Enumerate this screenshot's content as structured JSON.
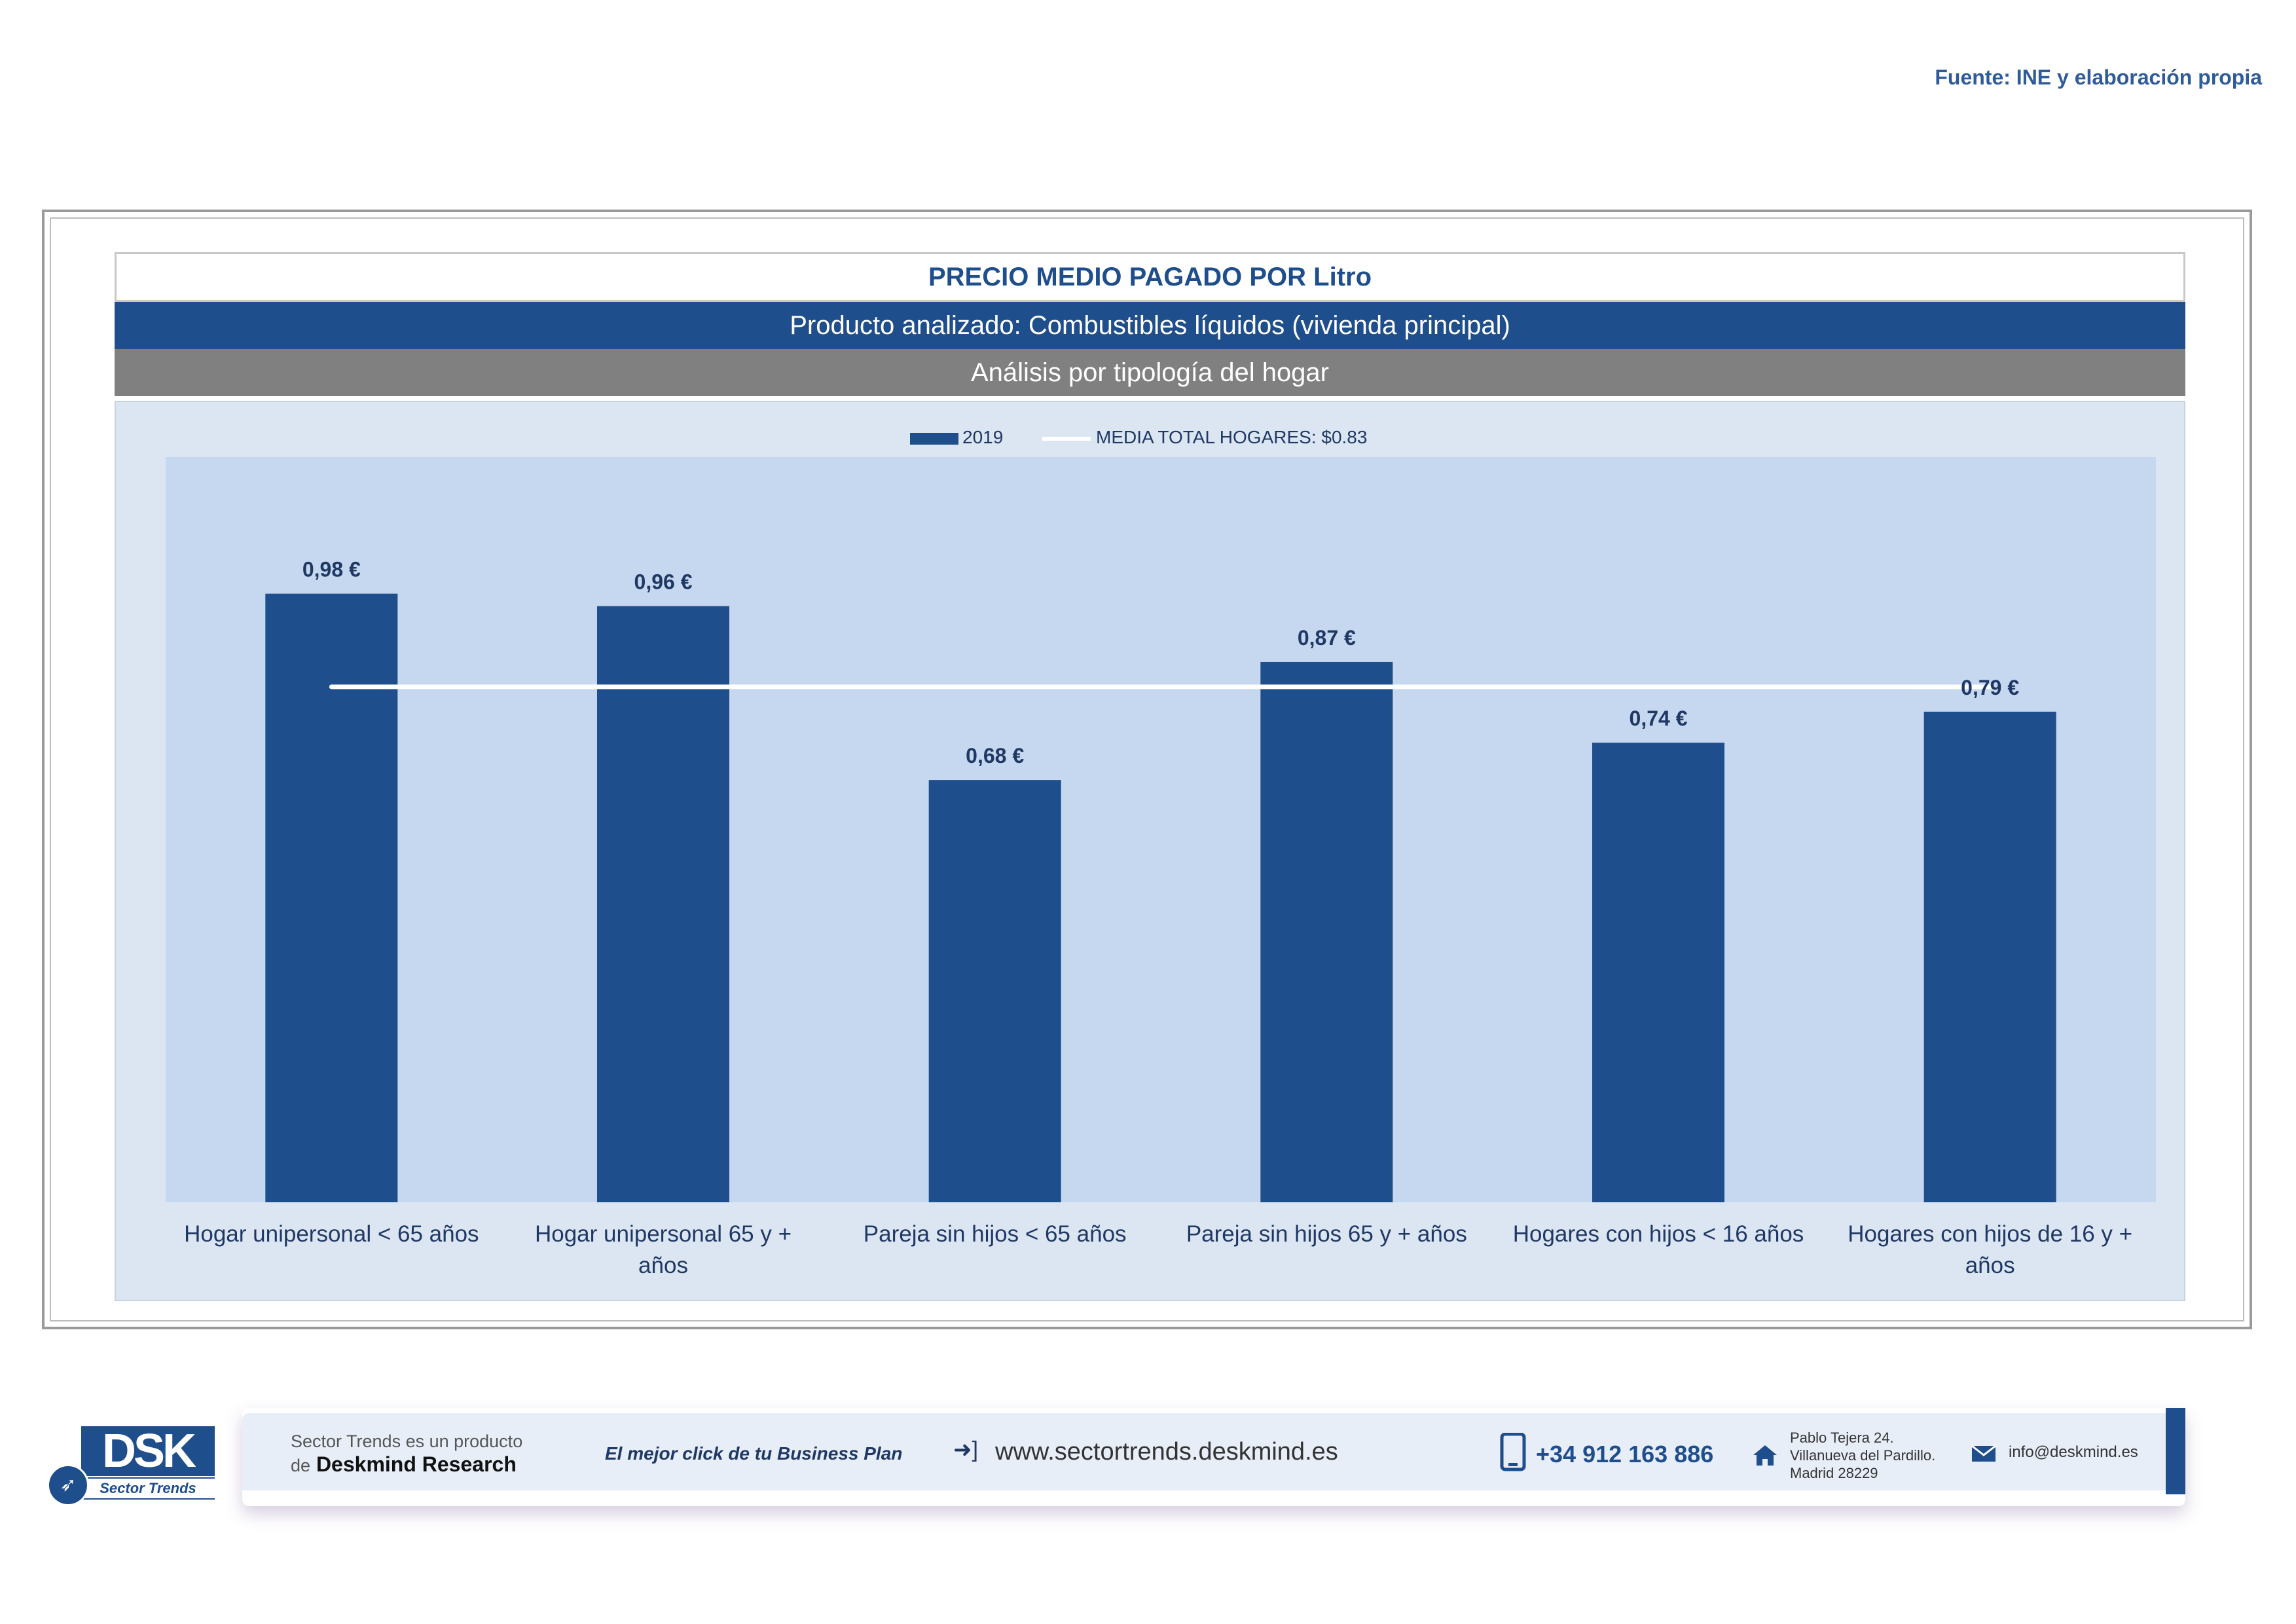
{
  "source": "Fuente: INE y elaboración propia",
  "header": {
    "title": "PRECIO MEDIO PAGADO POR Litro",
    "product": "Producto analizado: Combustibles líquidos (vivienda principal)",
    "analysis": "Análisis por tipología del hogar"
  },
  "legend": {
    "series_label": "2019",
    "average_label": "MEDIA TOTAL  HOGARES:   $0.83"
  },
  "chart_data": {
    "type": "bar",
    "categories": [
      [
        "Hogar unipersonal < 65 años"
      ],
      [
        "Hogar unipersonal  65 y +",
        "años"
      ],
      [
        "Pareja sin hijos < 65 años"
      ],
      [
        "Pareja sin hijos 65 y + años"
      ],
      [
        "Hogares con hijos < 16 años"
      ],
      [
        "Hogares con hijos de 16 y +",
        "años"
      ]
    ],
    "series": [
      {
        "name": "2019",
        "values": [
          0.98,
          0.96,
          0.68,
          0.87,
          0.74,
          0.79
        ]
      }
    ],
    "data_labels": [
      "0,98 €",
      "0,96 €",
      "0,68 €",
      "0,87 €",
      "0,74 €",
      "0,79 €"
    ],
    "average": {
      "name": "MEDIA TOTAL  HOGARES",
      "value": 0.83
    },
    "ylim": [
      0,
      1.2
    ],
    "grid": false,
    "legend_position": "top",
    "colors": {
      "bar": "#1F4E8C",
      "average_line": "#ffffff",
      "plot_bg": "#C6D8EF",
      "chart_bg": "#DCE6F2"
    }
  },
  "footer": {
    "logo_text": "DSK",
    "logo_sub": "Sector Trends",
    "product_line1": "Sector Trends es un producto",
    "product_line2_prefix": "de",
    "product_line2_brand": "Deskmind Research",
    "slogan": "El mejor click de tu Business Plan",
    "website": "www.sectortrends.deskmind.es",
    "phone": "+34 912 163 886",
    "address_line1": "Pablo Tejera 24.",
    "address_line2": "Villanueva del Pardillo.",
    "address_line3": "Madrid 28229",
    "email": "info@deskmind.es",
    "icons": [
      "arrow-enter-icon",
      "phone-icon",
      "home-icon",
      "mail-icon",
      "rocket-icon"
    ]
  }
}
